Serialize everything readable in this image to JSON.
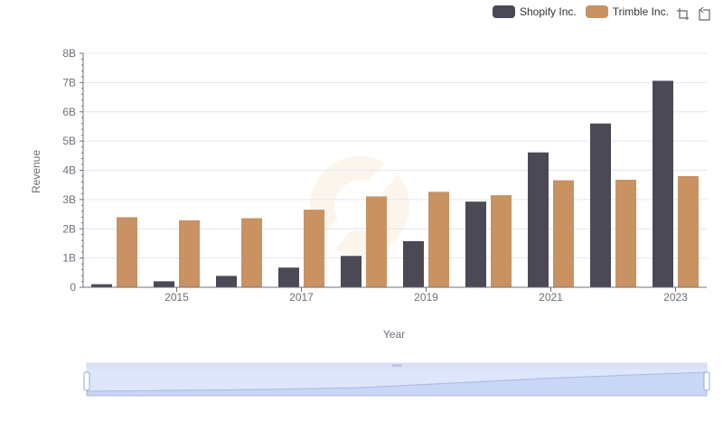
{
  "legend": {
    "items": [
      {
        "label": "Shopify Inc.",
        "color": "#4a4955"
      },
      {
        "label": "Trimble Inc.",
        "color": "#c89262"
      }
    ]
  },
  "toolbox": {
    "icons": [
      "zoom-icon",
      "restore-icon"
    ]
  },
  "chart_data": {
    "type": "bar",
    "xlabel": "Year",
    "ylabel": "Revenue",
    "ylim": [
      0,
      8000000000
    ],
    "y_ticks": [
      "0",
      "1B",
      "2B",
      "3B",
      "4B",
      "5B",
      "6B",
      "7B",
      "8B"
    ],
    "x_ticks_shown": [
      "2015",
      "2017",
      "2019",
      "2021",
      "2023"
    ],
    "categories": [
      "2014",
      "2015",
      "2016",
      "2017",
      "2018",
      "2019",
      "2020",
      "2021",
      "2022",
      "2023"
    ],
    "series": [
      {
        "name": "Shopify Inc.",
        "color": "#4a4955",
        "values": [
          105000000,
          205000000,
          389000000,
          673000000,
          1073000000,
          1578000000,
          2929000000,
          4612000000,
          5600000000,
          7060000000
        ]
      },
      {
        "name": "Trimble Inc.",
        "color": "#c89262",
        "values": [
          2396000000,
          2290000000,
          2362000000,
          2654000000,
          3108000000,
          3264000000,
          3148000000,
          3659000000,
          3676000000,
          3799000000
        ]
      }
    ],
    "grid": true,
    "legend_position": "top-right",
    "data_zoom": {
      "range": [
        0,
        100
      ]
    }
  }
}
